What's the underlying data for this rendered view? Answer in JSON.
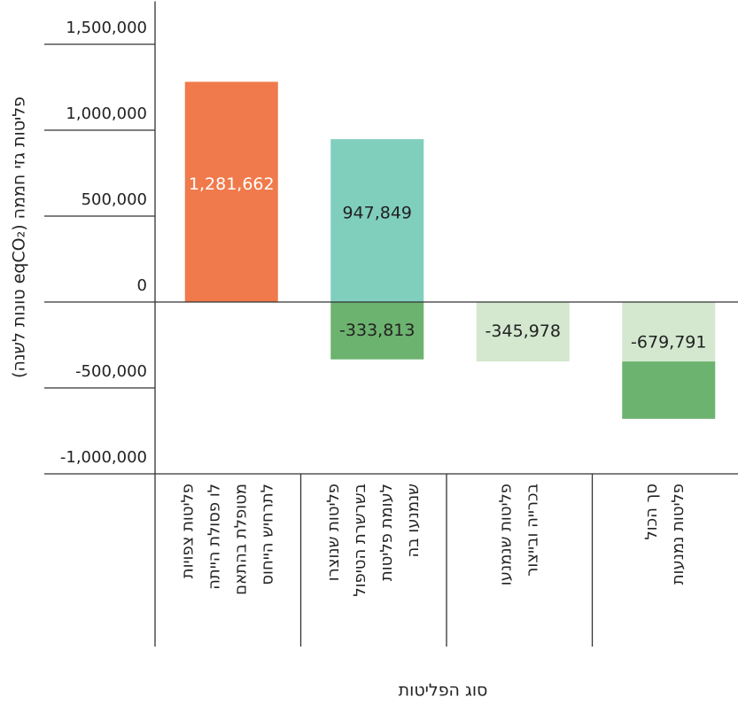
{
  "chart_data": {
    "type": "stacked-bar",
    "y_label": "פליטות גזי חממה (eqCO₂ טונות לשנה)",
    "x_label": "סוג הפליטות",
    "categories": [
      [
        "פליטות צפויות",
        "לו פסולת הייתה",
        "מטופלת בהתאם",
        "לתרחיש הייחוס"
      ],
      [
        "פליטות שנוצרו",
        "בשרשרת הטיפול",
        "לעומת פליטות",
        "שנמנעו בה"
      ],
      [
        "פליטות שנמנעו",
        "בכרייה ובייצור"
      ],
      [
        "סך הכול",
        "פליטות נמנעות"
      ]
    ],
    "series": [
      {
        "color": "#f07a4b",
        "values": [
          1281662,
          null,
          null,
          null
        ],
        "value_labels": [
          "1,281,662",
          null,
          null,
          null
        ],
        "label_color": "#ffffff"
      },
      {
        "color": "#80cfbd",
        "values": [
          null,
          947849,
          null,
          null
        ],
        "value_labels": [
          null,
          "947,849",
          null,
          null
        ],
        "label_color": "#222222"
      },
      {
        "color": "#d3e8cf",
        "values": [
          null,
          null,
          -345978,
          -345978
        ],
        "value_labels": [
          null,
          null,
          "-345,978",
          null
        ],
        "label_color": "#222222"
      },
      {
        "color": "#6cb36f",
        "values": [
          null,
          -333813,
          null,
          -333813
        ],
        "value_labels": [
          null,
          "-333,813",
          null,
          null
        ],
        "label_color": "#222222"
      }
    ],
    "totals": [
      null,
      null,
      null,
      -679791
    ],
    "total_labels": [
      null,
      null,
      null,
      "-679,791"
    ],
    "ylim": [
      -1000000,
      1750000
    ],
    "yticks": [
      {
        "value": -1000000,
        "label": "-1,000,000"
      },
      {
        "value": -500000,
        "label": "-500,000"
      },
      0,
      {
        "value": 500000,
        "label": "500,000"
      },
      {
        "value": 1000000,
        "label": "1,000,000"
      },
      {
        "value": 1500000,
        "label": "1,500,000"
      }
    ]
  }
}
